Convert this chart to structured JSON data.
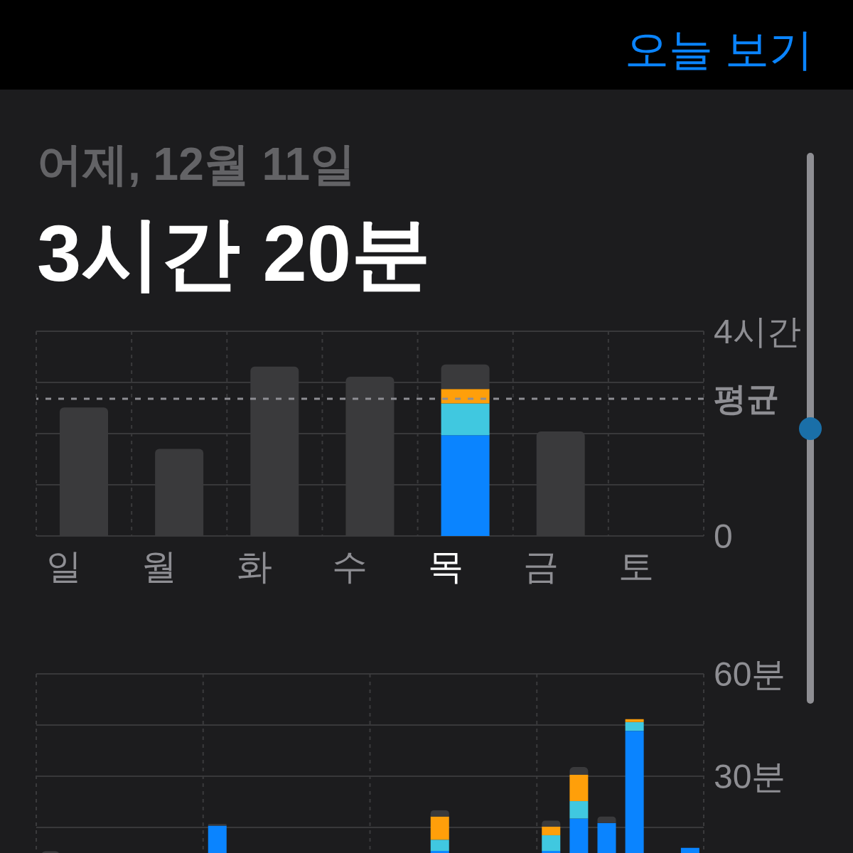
{
  "chart_data": [
    {
      "type": "bar",
      "subtitle": "어제, 12월 11일",
      "title": "3시간 20분",
      "annotations": [
        "오늘 보기"
      ],
      "stacked": true,
      "grid": true,
      "categories": [
        "일",
        "월",
        "화",
        "수",
        "목",
        "금",
        "토"
      ],
      "series": [
        {
          "color": "#0a84ff",
          "values": [
            null,
            null,
            null,
            null,
            1.97,
            null,
            null
          ]
        },
        {
          "color": "#40c8e0",
          "values": [
            null,
            null,
            null,
            null,
            0.62,
            null,
            null
          ]
        },
        {
          "color": "#ff9f0a",
          "values": [
            null,
            null,
            null,
            null,
            0.28,
            null,
            null
          ]
        },
        {
          "color": "#3a3a3c",
          "values": [
            2.51,
            1.7,
            3.31,
            3.11,
            0.48,
            2.04,
            null
          ]
        }
      ],
      "ylim": [
        0,
        4
      ],
      "yticks": [
        {
          "value": 0,
          "label": "0"
        },
        {
          "value": 1,
          "label": null
        },
        {
          "value": 2,
          "label": null
        },
        {
          "value": 3,
          "label": null
        },
        {
          "value": 4,
          "label": "4시간"
        }
      ],
      "ref_lines": [
        {
          "axis": "y",
          "value": 2.68,
          "label": "평균",
          "line_style": "dashed",
          "color": "#8e8e93"
        }
      ]
    },
    {
      "type": "bar",
      "stacked": true,
      "grid": true,
      "categories": [
        null,
        null,
        null,
        null,
        null,
        null,
        null,
        null,
        null,
        null,
        null,
        null,
        null,
        null,
        null,
        null,
        null,
        null,
        null,
        null,
        null,
        null,
        null,
        null
      ],
      "series": [
        {
          "color": "#0a84ff",
          "values": [
            null,
            null,
            null,
            null,
            null,
            null,
            15.5,
            null,
            null,
            null,
            null,
            null,
            null,
            null,
            8.1,
            null,
            null,
            null,
            8.1,
            17.6,
            16.3,
            43.3,
            null,
            9
          ]
        },
        {
          "color": "#40c8e0",
          "values": [
            null,
            null,
            null,
            null,
            null,
            null,
            null,
            null,
            null,
            null,
            null,
            null,
            null,
            null,
            3.3,
            null,
            null,
            null,
            4.6,
            5.1,
            null,
            2.6,
            null,
            null
          ]
        },
        {
          "color": "#ff9f0a",
          "values": [
            null,
            null,
            null,
            null,
            null,
            null,
            null,
            null,
            null,
            null,
            null,
            null,
            null,
            null,
            6.8,
            null,
            null,
            null,
            2.5,
            7.7,
            null,
            0.8,
            null,
            null
          ]
        },
        {
          "color": "#3a3a3c",
          "values": [
            8,
            null,
            null,
            null,
            null,
            null,
            0.5,
            null,
            null,
            null,
            null,
            null,
            null,
            null,
            1.8,
            null,
            null,
            null,
            1.8,
            2.3,
            1.9,
            null,
            null,
            null
          ]
        }
      ],
      "ylim": [
        0,
        60
      ],
      "yticks": [
        {
          "value": 15,
          "label": null
        },
        {
          "value": 30,
          "label": "30분"
        },
        {
          "value": 45,
          "label": null
        },
        {
          "value": 60,
          "label": "60분"
        }
      ]
    }
  ]
}
